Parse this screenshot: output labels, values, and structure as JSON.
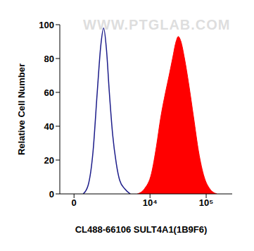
{
  "chart_data": {
    "type": "line",
    "x_label": "CL488-66106 SULT4A1(1B9F6)",
    "y_label": "Relative Cell Number",
    "annotations": [
      "WWW.PTGLAB.COM"
    ],
    "xlim": [
      -550,
      290000
    ],
    "xticks": [
      0,
      {
        "value": 10000,
        "label": "10⁴"
      },
      {
        "value": 100000,
        "label": "10⁵"
      }
    ],
    "ylim": [
      0,
      100
    ],
    "yticks": [
      0,
      20,
      40,
      60,
      80,
      100
    ],
    "grid": false,
    "series": [
      {
        "type": "line",
        "color": "#1c1c8a",
        "x": [
          343,
          543,
          767,
          982,
          1190,
          1370,
          1570,
          1790,
          2080,
          2440,
          2830,
          3500,
          4430
        ],
        "values": [
          0,
          5,
          25,
          60,
          88,
          98,
          85,
          60,
          35,
          18,
          8,
          3,
          0
        ]
      },
      {
        "type": "area",
        "color": "#ff0000",
        "x": [
          5940,
          7950,
          10600,
          13000,
          15500,
          18900,
          21900,
          25200,
          29100,
          31800,
          35600,
          41200,
          48900,
          59900,
          73300,
          92200,
          116000,
          155000
        ],
        "values": [
          0,
          3,
          12,
          28,
          45,
          60,
          70,
          80,
          90,
          93,
          90,
          80,
          65,
          45,
          25,
          10,
          3,
          0
        ]
      }
    ]
  }
}
